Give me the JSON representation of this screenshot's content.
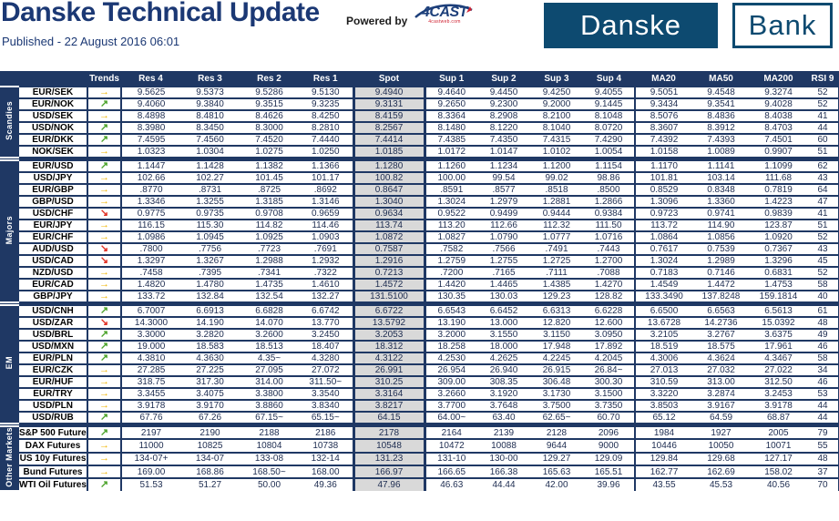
{
  "header": {
    "title": "Danske Technical Update",
    "published": "Published - 22 August 2016 06:01",
    "powered_by_label": "Powered by",
    "fourcast_logo": {
      "text": "4CAST",
      "subtext": "4castweb.com"
    },
    "bank_logo": {
      "left": "Danske",
      "right": "Bank"
    }
  },
  "colors": {
    "table_navy": "#1f3864",
    "title_blue": "#1b3874",
    "logo_blue": "#0d4a70",
    "spot_bg": "#d9d9d9",
    "trend_up_green": "#4ca32b",
    "trend_flat_yellow": "#f0b400",
    "trend_down_red": "#e03024"
  },
  "trend_icons": {
    "up": "↗",
    "flat": "→",
    "down": "↘"
  },
  "table": {
    "column_headers": [
      "Trends",
      "Res 4",
      "Res 3",
      "Res 2",
      "Res 1",
      "Spot",
      "Sup 1",
      "Sup 2",
      "Sup 3",
      "Sup 4",
      "MA20",
      "MA50",
      "MA200",
      "RSI 9"
    ],
    "groups": [
      {
        "label": "Scandies",
        "rows": [
          {
            "pair": "EUR/SEK",
            "trend": "flat",
            "values": [
              "9.5625",
              "9.5373",
              "9.5286",
              "9.5130",
              "9.4940",
              "9.4640",
              "9.4450",
              "9.4250",
              "9.4055",
              "9.5051",
              "9.4548",
              "9.3274",
              "52"
            ]
          },
          {
            "pair": "EUR/NOK",
            "trend": "up",
            "values": [
              "9.4060",
              "9.3840",
              "9.3515",
              "9.3235",
              "9.3131",
              "9.2650",
              "9.2300",
              "9.2000",
              "9.1445",
              "9.3434",
              "9.3541",
              "9.4028",
              "52"
            ]
          },
          {
            "pair": "USD/SEK",
            "trend": "flat",
            "values": [
              "8.4898",
              "8.4810",
              "8.4626",
              "8.4250",
              "8.4159",
              "8.3364",
              "8.2908",
              "8.2100",
              "8.1048",
              "8.5076",
              "8.4836",
              "8.4038",
              "41"
            ]
          },
          {
            "pair": "USD/NOK",
            "trend": "up",
            "values": [
              "8.3980",
              "8.3450",
              "8.3000",
              "8.2810",
              "8.2567",
              "8.1480",
              "8.1220",
              "8.1040",
              "8.0720",
              "8.3607",
              "8.3912",
              "8.4703",
              "44"
            ]
          },
          {
            "pair": "EUR/DKK",
            "trend": "up",
            "values": [
              "7.4595",
              "7.4560",
              "7.4520",
              "7.4440",
              "7.4414",
              "7.4385",
              "7.4350",
              "7.4315",
              "7.4290",
              "7.4392",
              "7.4393",
              "7.4501",
              "60"
            ]
          },
          {
            "pair": "NOK/SEK",
            "trend": "flat",
            "values": [
              "1.0323",
              "1.0304",
              "1.0275",
              "1.0250",
              "1.0185",
              "1.0172",
              "1.0147",
              "1.0102",
              "1.0054",
              "1.0158",
              "1.0089",
              "0.9907",
              "51"
            ]
          }
        ]
      },
      {
        "label": "Majors",
        "rows": [
          {
            "pair": "EUR/USD",
            "trend": "up",
            "values": [
              "1.1447",
              "1.1428",
              "1.1382",
              "1.1366",
              "1.1280",
              "1.1260",
              "1.1234",
              "1.1200",
              "1.1154",
              "1.1170",
              "1.1141",
              "1.1099",
              "62"
            ]
          },
          {
            "pair": "USD/JPY",
            "trend": "flat",
            "values": [
              "102.66",
              "102.27",
              "101.45",
              "101.17",
              "100.82",
              "100.00",
              "99.54",
              "99.02",
              "98.86",
              "101.81",
              "103.14",
              "111.68",
              "43"
            ]
          },
          {
            "pair": "EUR/GBP",
            "trend": "flat",
            "values": [
              ".8770",
              ".8731",
              ".8725",
              ".8692",
              "0.8647",
              ".8591",
              ".8577",
              ".8518",
              ".8500",
              "0.8529",
              "0.8348",
              "0.7819",
              "64"
            ]
          },
          {
            "pair": "GBP/USD",
            "trend": "flat",
            "values": [
              "1.3346",
              "1.3255",
              "1.3185",
              "1.3146",
              "1.3040",
              "1.3024",
              "1.2979",
              "1.2881",
              "1.2866",
              "1.3096",
              "1.3360",
              "1.4223",
              "47"
            ]
          },
          {
            "pair": "USD/CHF",
            "trend": "down",
            "values": [
              "0.9775",
              "0.9735",
              "0.9708",
              "0.9659",
              "0.9634",
              "0.9522",
              "0.9499",
              "0.9444",
              "0.9384",
              "0.9723",
              "0.9741",
              "0.9839",
              "41"
            ]
          },
          {
            "pair": "EUR/JPY",
            "trend": "flat",
            "values": [
              "116.15",
              "115.30",
              "114.82",
              "114.46",
              "113.74",
              "113.20",
              "112.66",
              "112.32",
              "111.50",
              "113.72",
              "114.90",
              "123.87",
              "51"
            ]
          },
          {
            "pair": "EUR/CHF",
            "trend": "flat",
            "values": [
              "1.0986",
              "1.0945",
              "1.0925",
              "1.0903",
              "1.0872",
              "1.0827",
              "1.0790",
              "1.0777",
              "1.0716",
              "1.0864",
              "1.0856",
              "1.0920",
              "52"
            ]
          },
          {
            "pair": "AUD/USD",
            "trend": "down",
            "values": [
              ".7800",
              ".7756",
              ".7723",
              ".7691",
              "0.7587",
              ".7582",
              ".7566",
              ".7491",
              ".7443",
              "0.7617",
              "0.7539",
              "0.7367",
              "43"
            ]
          },
          {
            "pair": "USD/CAD",
            "trend": "down",
            "values": [
              "1.3297",
              "1.3267",
              "1.2988",
              "1.2932",
              "1.2916",
              "1.2759",
              "1.2755",
              "1.2725",
              "1.2700",
              "1.3024",
              "1.2989",
              "1.3296",
              "45"
            ]
          },
          {
            "pair": "NZD/USD",
            "trend": "flat",
            "values": [
              ".7458",
              ".7395",
              ".7341",
              ".7322",
              "0.7213",
              ".7200",
              ".7165",
              ".7111",
              ".7088",
              "0.7183",
              "0.7146",
              "0.6831",
              "52"
            ]
          },
          {
            "pair": "EUR/CAD",
            "trend": "flat",
            "values": [
              "1.4820",
              "1.4780",
              "1.4735",
              "1.4610",
              "1.4572",
              "1.4420",
              "1.4465",
              "1.4385",
              "1.4270",
              "1.4549",
              "1.4472",
              "1.4753",
              "58"
            ]
          },
          {
            "pair": "GBP/JPY",
            "trend": "flat",
            "values": [
              "133.72",
              "132.84",
              "132.54",
              "132.27",
              "131.5100",
              "130.35",
              "130.03",
              "129.23",
              "128.82",
              "133.3490",
              "137.8248",
              "159.1814",
              "40"
            ]
          }
        ]
      },
      {
        "label": "EM",
        "rows": [
          {
            "pair": "USD/CNH",
            "trend": "up",
            "values": [
              "6.7007",
              "6.6913",
              "6.6828",
              "6.6742",
              "6.6722",
              "6.6543",
              "6.6452",
              "6.6313",
              "6.6228",
              "6.6500",
              "6.6563",
              "6.5613",
              "61"
            ]
          },
          {
            "pair": "USD/ZAR",
            "trend": "down",
            "values": [
              "14.3000",
              "14.190",
              "14.070",
              "13.770",
              "13.5792",
              "13.190",
              "13.000",
              "12.820",
              "12.600",
              "13.6728",
              "14.2736",
              "15.0392",
              "48"
            ]
          },
          {
            "pair": "USD/BRL",
            "trend": "up",
            "values": [
              "3.3000",
              "3.2820",
              "3.2600",
              "3.2450",
              "3.2053",
              "3.2000",
              "3.1550",
              "3.1150",
              "3.0950",
              "3.2105",
              "3.2767",
              "3.6375",
              "49"
            ]
          },
          {
            "pair": "USD/MXN",
            "trend": "up",
            "values": [
              "19.000",
              "18.583",
              "18.513",
              "18.407",
              "18.312",
              "18.258",
              "18.000",
              "17.948",
              "17.892",
              "18.519",
              "18.575",
              "17.961",
              "46"
            ]
          },
          {
            "pair": "EUR/PLN",
            "trend": "up",
            "values": [
              "4.3810",
              "4.3630",
              "4.35~",
              "4.3280",
              "4.3122",
              "4.2530",
              "4.2625",
              "4.2245",
              "4.2045",
              "4.3006",
              "4.3624",
              "4.3467",
              "58"
            ]
          },
          {
            "pair": "EUR/CZK",
            "trend": "flat",
            "values": [
              "27.285",
              "27.225",
              "27.095",
              "27.072",
              "26.991",
              "26.954",
              "26.940",
              "26.915",
              "26.84~",
              "27.013",
              "27.032",
              "27.022",
              "34"
            ]
          },
          {
            "pair": "EUR/HUF",
            "trend": "flat",
            "values": [
              "318.75",
              "317.30",
              "314.00",
              "311.50~",
              "310.25",
              "309.00",
              "308.35",
              "306.48",
              "300.30",
              "310.59",
              "313.00",
              "312.50",
              "46"
            ]
          },
          {
            "pair": "EUR/TRY",
            "trend": "flat",
            "values": [
              "3.3455",
              "3.4075",
              "3.3800",
              "3.3540",
              "3.3164",
              "3.2660",
              "3.1920",
              "3.1730",
              "3.1500",
              "3.3220",
              "3.2874",
              "3.2453",
              "53"
            ]
          },
          {
            "pair": "USD/PLN",
            "trend": "flat",
            "values": [
              "3.9178",
              "3.9170",
              "3.8860",
              "3.8340",
              "3.8217",
              "3.7700",
              "3.7648",
              "3.7500",
              "3.7350",
              "3.8503",
              "3.9167",
              "3.9178",
              "44"
            ]
          },
          {
            "pair": "USD/RUB",
            "trend": "up",
            "values": [
              "67.76",
              "67.26",
              "67.15~",
              "65.15~",
              "64.15",
              "64.00~",
              "63.40",
              "62.65~",
              "60.70",
              "65.12",
              "64.59",
              "68.87",
              "44"
            ]
          }
        ]
      },
      {
        "label": "Other Markets",
        "rows": [
          {
            "pair": "S&P 500 Futures",
            "trend": "up",
            "values": [
              "2197",
              "2190",
              "2188",
              "2186",
              "2178",
              "2164",
              "2139",
              "2128",
              "2096",
              "1984",
              "1927",
              "2005",
              "79"
            ]
          },
          {
            "pair": "DAX Futures",
            "trend": "flat",
            "values": [
              "11000",
              "10825",
              "10804",
              "10738",
              "10548",
              "10472",
              "10088",
              "9644",
              "9000",
              "10446",
              "10050",
              "10071",
              "55"
            ]
          },
          {
            "pair": "US 10y Futures",
            "trend": "flat",
            "values": [
              "134-07+",
              "134-07",
              "133-08",
              "132-14",
              "131.23",
              "131-10",
              "130-00",
              "129.27",
              "129.09",
              "129.84",
              "129.68",
              "127.17",
              "48"
            ]
          },
          {
            "pair": "Bund Futures",
            "trend": "flat",
            "values": [
              "169.00",
              "168.86",
              "168.50~",
              "168.00",
              "166.97",
              "166.65",
              "166.38",
              "165.63",
              "165.51",
              "162.77",
              "162.69",
              "158.02",
              "37"
            ]
          },
          {
            "pair": "WTI Oil Futures",
            "trend": "up",
            "values": [
              "51.53",
              "51.27",
              "50.00",
              "49.36",
              "47.96",
              "46.63",
              "44.44",
              "42.00",
              "39.96",
              "43.55",
              "45.53",
              "40.56",
              "70"
            ]
          }
        ]
      }
    ]
  }
}
